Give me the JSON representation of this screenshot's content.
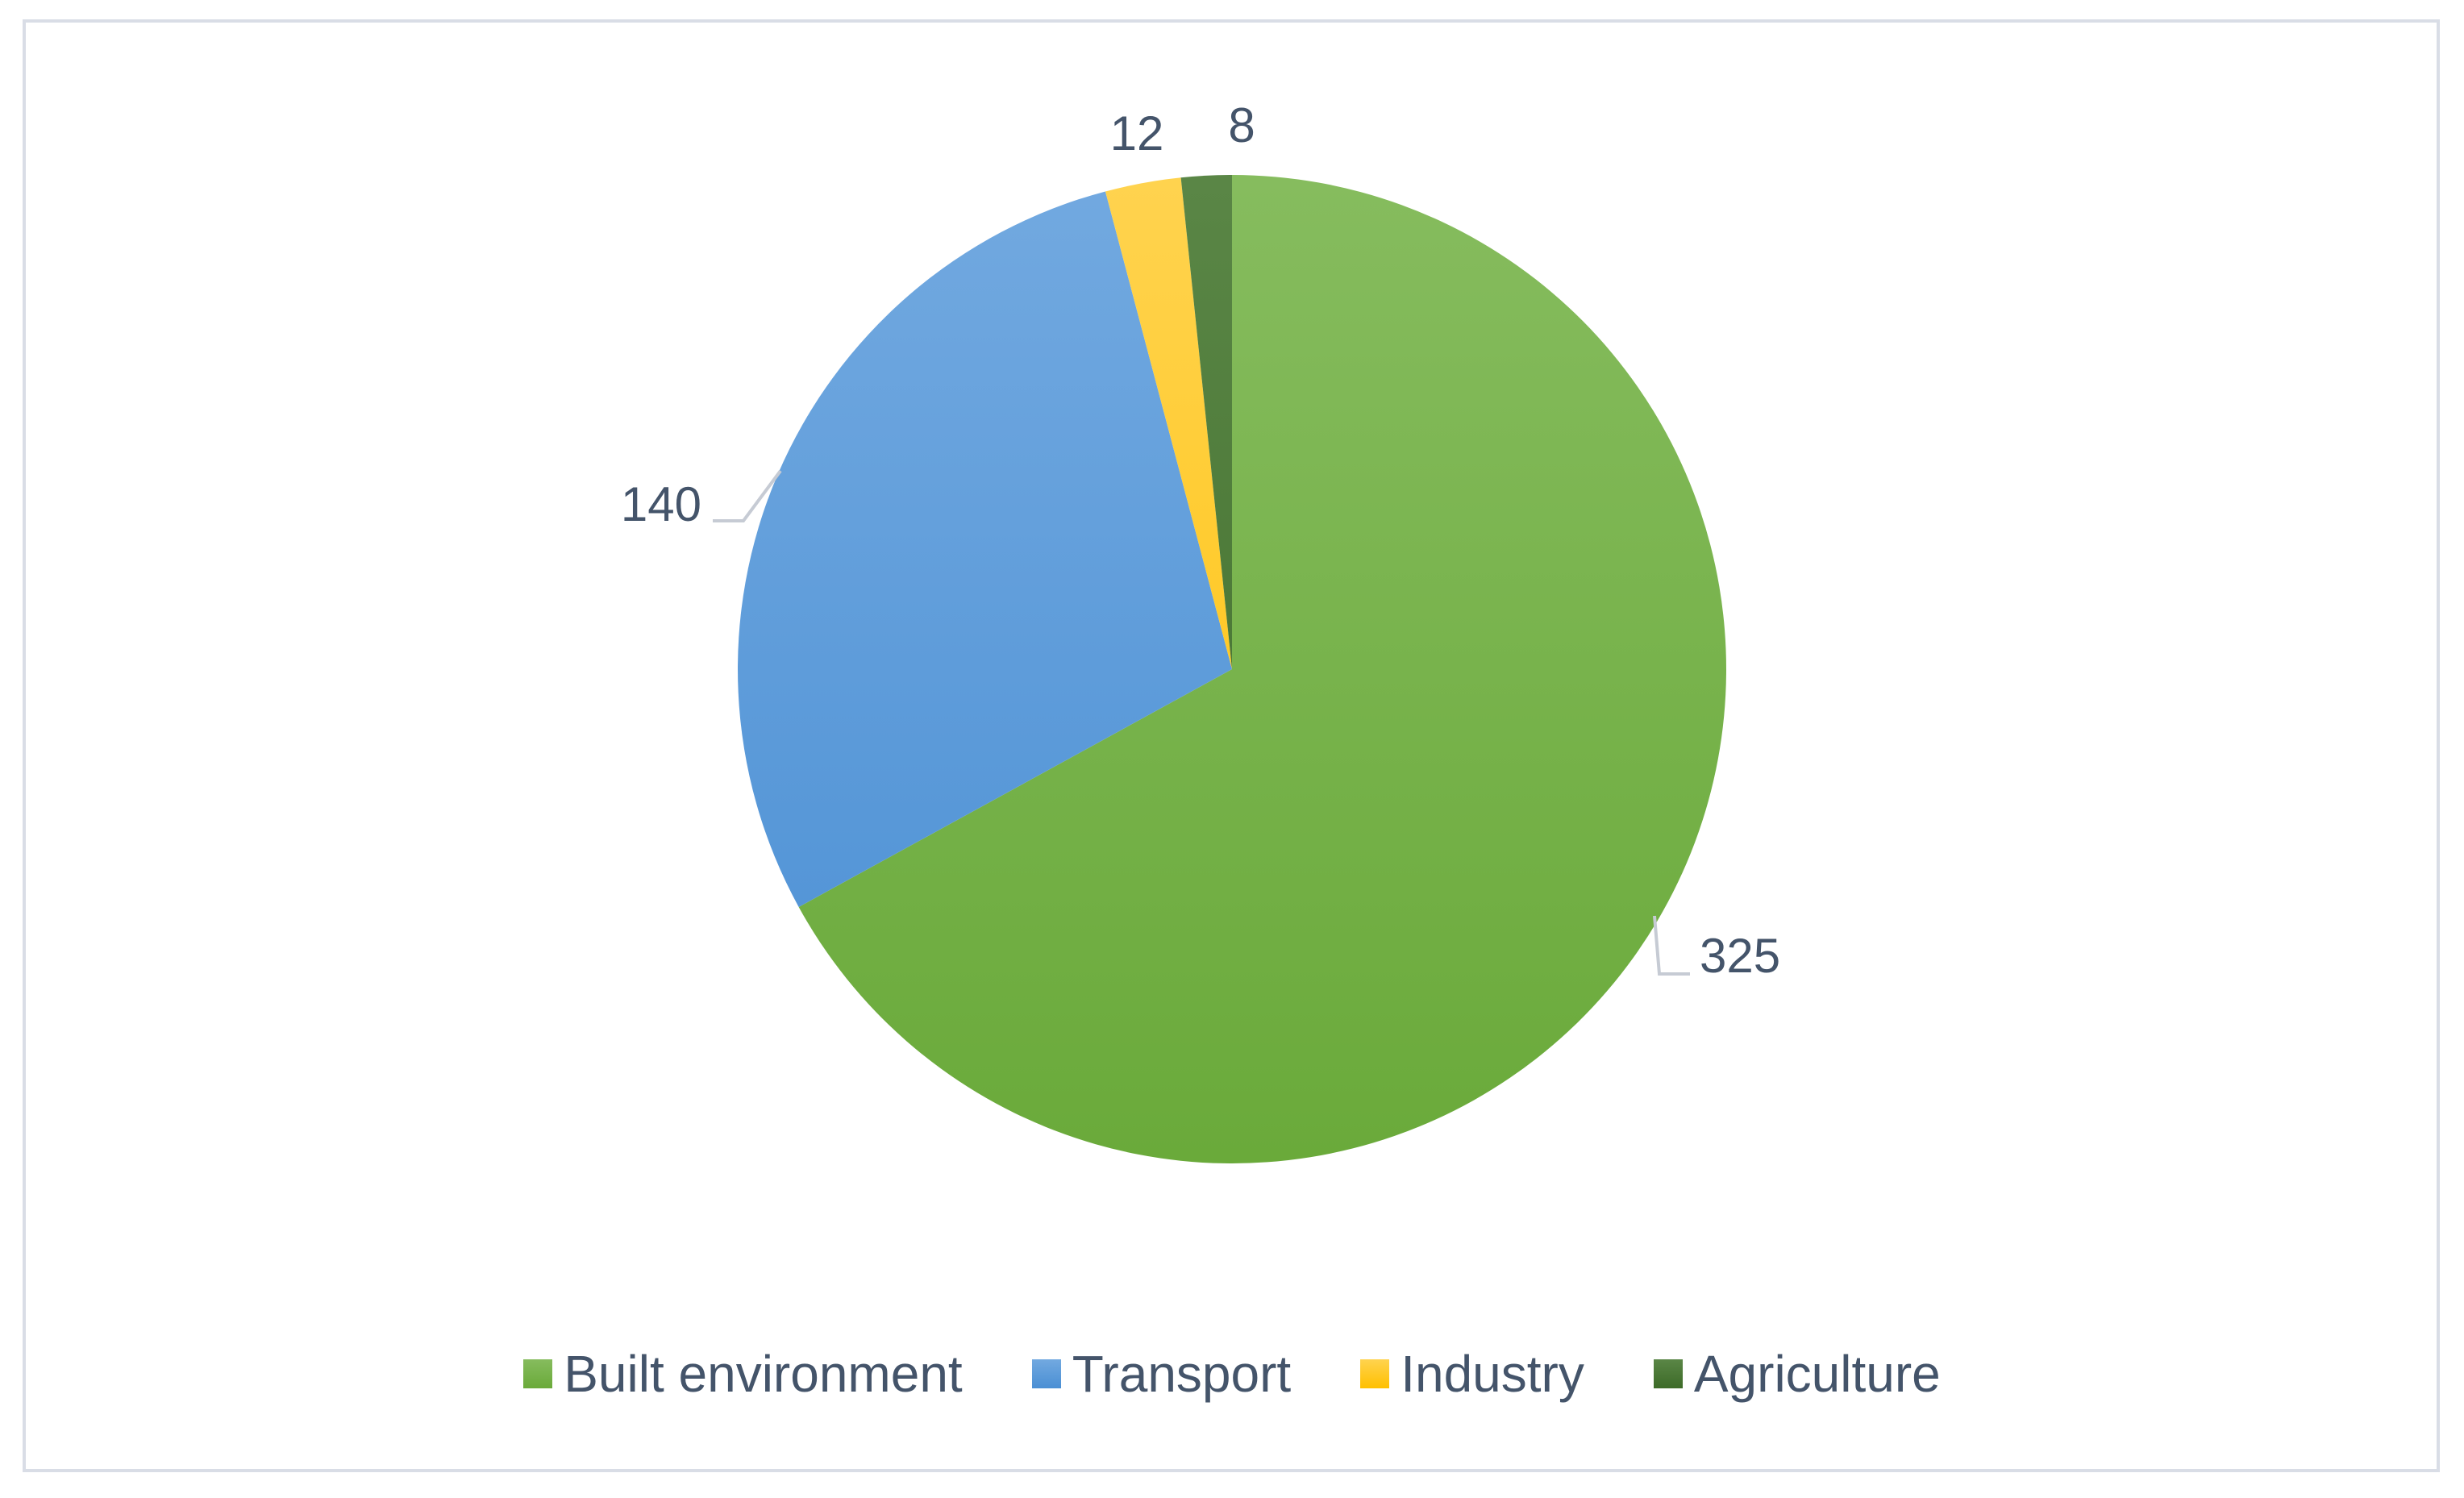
{
  "chart_data": {
    "type": "pie",
    "title": "",
    "categories": [
      "Built environment",
      "Transport",
      "Industry",
      "Agriculture"
    ],
    "values": [
      325,
      140,
      12,
      8
    ],
    "value_labels": [
      "325",
      "140",
      "12",
      "8"
    ],
    "colors": [
      "#6aaa3a",
      "#4a8fd4",
      "#ffc000",
      "#3d6b28"
    ],
    "colors_light": [
      "#86bc5e",
      "#72a9e0",
      "#ffd34f",
      "#5a8646"
    ],
    "start_angle_deg": 0,
    "direction": "clockwise",
    "legend_position": "bottom",
    "leader_line_color": "#c6cbd4"
  }
}
